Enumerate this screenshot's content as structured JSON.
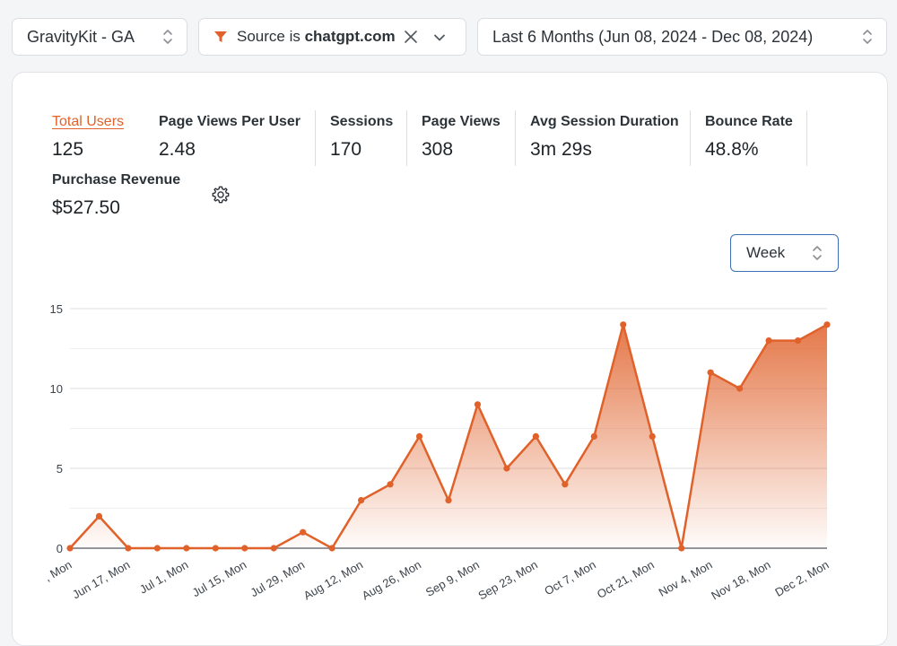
{
  "header": {
    "account": {
      "label": "GravityKit - GA"
    },
    "filter": {
      "prefix": "Source is ",
      "value": "chatgpt.com"
    },
    "date_range": {
      "label": "Last 6 Months (Jun 08, 2024 - Dec 08, 2024)"
    }
  },
  "metrics": [
    {
      "label": "Total Users",
      "value": "125",
      "active": true
    },
    {
      "label": "Page Views Per User",
      "value": "2.48"
    },
    {
      "label": "Sessions",
      "value": "170"
    },
    {
      "label": "Page Views",
      "value": "308"
    },
    {
      "label": "Avg Session Duration",
      "value": "3m 29s"
    },
    {
      "label": "Bounce Rate",
      "value": "48.8%"
    },
    {
      "label": "Purchase Revenue",
      "value": "$527.50"
    }
  ],
  "granularity": {
    "selected": "Week"
  },
  "colors": {
    "accent": "#e0612a",
    "focus": "#3b6fb6"
  },
  "chart_data": {
    "type": "area",
    "ylim": [
      0,
      15
    ],
    "yticks": [
      0,
      5,
      10,
      15
    ],
    "grid": true,
    "x_tick_labels": ", Mon|Jun 17, Mon|Jul 1, Mon|Jul 15, Mon|Jul 29, Mon|Aug 12, Mon|Aug 26, Mon|Sep 9, Mon|Sep 23, Mon|Oct 7, Mon|Oct 21, Mon|Nov 4, Mon|Nov 18, Mon|Dec 2, Mon",
    "series": [
      {
        "values": [
          0,
          2,
          0,
          0,
          0,
          0,
          0,
          0,
          1,
          0,
          3,
          4,
          7,
          3,
          9,
          5,
          7,
          4,
          7,
          14,
          7,
          0,
          11,
          10,
          13,
          13,
          14
        ]
      }
    ]
  }
}
